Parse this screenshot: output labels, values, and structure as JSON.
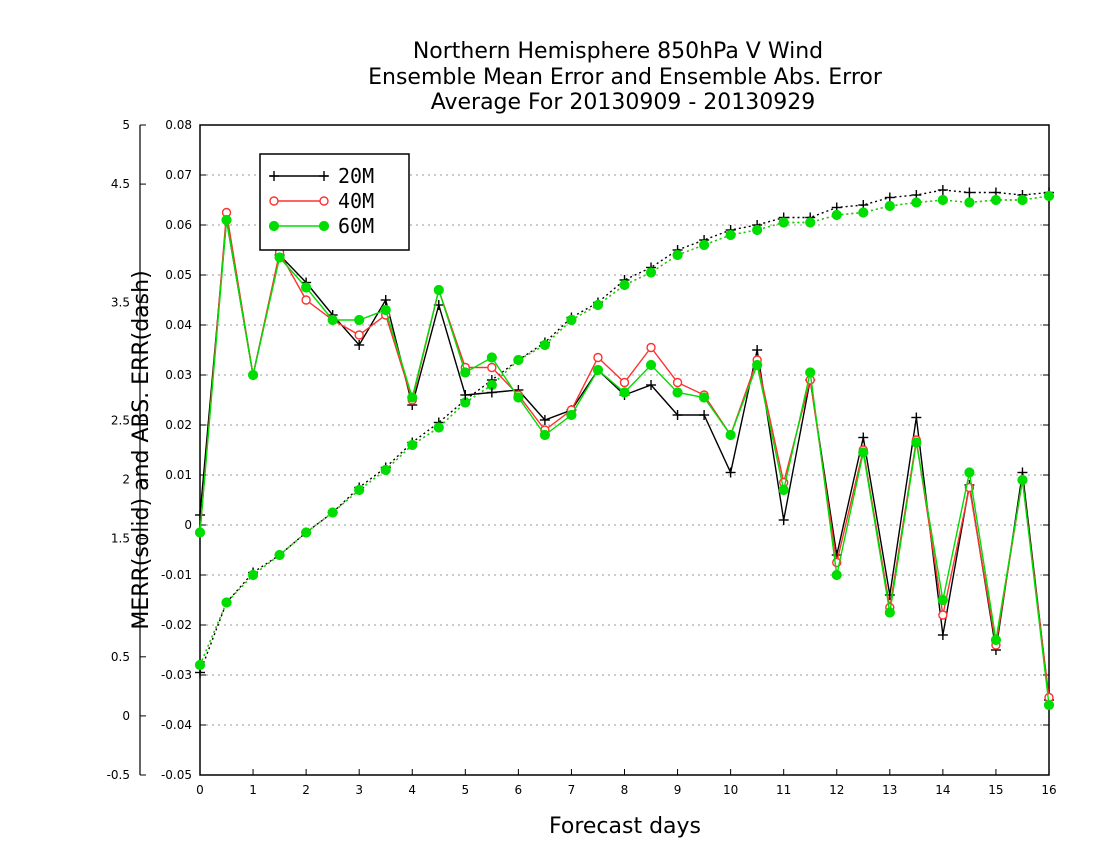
{
  "chart_data": {
    "type": "line",
    "title": [
      "Northern Hemisphere 850hPa V Wind",
      "Ensemble Mean Error and Ensemble Abs. Error",
      "Average For 20130909 - 20130929"
    ],
    "xlabel": "Forecast days",
    "ylabel": "MERR(solid) and ABS. ERR(dash)",
    "xlim": [
      0,
      16
    ],
    "ylim_right_axis": [
      -0.05,
      0.08
    ],
    "ylim_left_axis": [
      -0.5,
      5
    ],
    "x_ticks": [
      "0",
      "1",
      "2",
      "3",
      "4",
      "5",
      "6",
      "7",
      "8",
      "9",
      "10",
      "11",
      "12",
      "13",
      "14",
      "15",
      "16"
    ],
    "y_ticks_right_axis": [
      "0.08",
      "0.07",
      "0.06",
      "0.05",
      "0.04",
      "0.03",
      "0.02",
      "0.01",
      "0",
      "-0.01",
      "-0.02",
      "-0.03",
      "-0.04",
      "-0.05"
    ],
    "y_ticks_left_axis": [
      "5",
      "4.5",
      "3.5",
      "2.5",
      "2",
      "1.5",
      "0.5",
      "0",
      "-0.5"
    ],
    "grid": "horizontal dotted",
    "legend_position": "top-left",
    "x": [
      0,
      0.5,
      1,
      1.5,
      2,
      2.5,
      3,
      3.5,
      4,
      4.5,
      5,
      5.5,
      6,
      6.5,
      7,
      7.5,
      8,
      8.5,
      9,
      9.5,
      10,
      10.5,
      11,
      11.5,
      12,
      12.5,
      13,
      13.5,
      14,
      14.5,
      15,
      15.5,
      16
    ],
    "series": [
      {
        "name": "20M",
        "color": "#000000",
        "marker": "plus",
        "merr": [
          0.002,
          0.061,
          0.03,
          0.054,
          0.0485,
          0.042,
          0.036,
          0.045,
          0.024,
          0.044,
          0.026,
          0.0265,
          0.027,
          0.021,
          0.023,
          0.031,
          0.026,
          0.028,
          0.022,
          0.022,
          0.0105,
          0.035,
          0.001,
          0.029,
          -0.006,
          0.0175,
          -0.014,
          0.0215,
          -0.022,
          0.008,
          -0.025,
          0.0105,
          -0.035
        ],
        "abs_err": [
          -0.0295,
          -0.0155,
          -0.0095,
          -0.006,
          -0.0015,
          0.0025,
          0.0075,
          0.0115,
          0.0165,
          0.0205,
          0.025,
          0.029,
          0.033,
          0.0365,
          0.0415,
          0.0445,
          0.049,
          0.0515,
          0.055,
          0.057,
          0.059,
          0.06,
          0.0615,
          0.0615,
          0.0635,
          0.064,
          0.0655,
          0.066,
          0.067,
          0.0665,
          0.0665,
          0.066,
          0.0665
        ]
      },
      {
        "name": "40M",
        "color": "#ff3030",
        "marker": "open-circle",
        "merr": [
          -0.0015,
          0.0625,
          0.03,
          0.0545,
          0.045,
          0.041,
          0.038,
          0.042,
          0.025,
          0.047,
          0.0315,
          0.0315,
          0.026,
          0.019,
          0.023,
          0.0335,
          0.0285,
          0.0355,
          0.0285,
          0.026,
          0.018,
          0.033,
          0.0085,
          0.029,
          -0.0075,
          0.015,
          -0.0165,
          0.017,
          -0.018,
          0.0075,
          -0.024,
          0.009,
          -0.0345
        ],
        "abs_err": [
          -0.028,
          -0.0155,
          -0.01,
          -0.006,
          -0.0015,
          0.0025,
          0.007,
          0.011,
          0.016,
          0.0195,
          0.0245,
          0.028,
          0.033,
          0.036,
          0.041,
          0.044,
          0.048,
          0.0505,
          0.054,
          0.056,
          0.058,
          0.059,
          0.0605,
          0.0605,
          0.062,
          0.0625,
          0.0638,
          0.0645,
          0.065,
          0.0645,
          0.065,
          0.065,
          0.0658
        ]
      },
      {
        "name": "60M",
        "color": "#00dd00",
        "marker": "filled-circle",
        "merr": [
          -0.0015,
          0.061,
          0.03,
          0.0535,
          0.0475,
          0.041,
          0.041,
          0.043,
          0.0255,
          0.047,
          0.0305,
          0.0335,
          0.0255,
          0.018,
          0.022,
          0.031,
          0.0265,
          0.032,
          0.0265,
          0.0255,
          0.018,
          0.032,
          0.007,
          0.0305,
          -0.01,
          0.0145,
          -0.0175,
          0.0165,
          -0.015,
          0.0105,
          -0.023,
          0.009,
          -0.036
        ],
        "abs_err": [
          -0.028,
          -0.0155,
          -0.01,
          -0.006,
          -0.0015,
          0.0025,
          0.007,
          0.011,
          0.016,
          0.0195,
          0.0245,
          0.028,
          0.033,
          0.036,
          0.041,
          0.044,
          0.048,
          0.0505,
          0.054,
          0.056,
          0.058,
          0.059,
          0.0605,
          0.0605,
          0.062,
          0.0625,
          0.0638,
          0.0645,
          0.065,
          0.0645,
          0.065,
          0.065,
          0.0658
        ]
      }
    ]
  }
}
